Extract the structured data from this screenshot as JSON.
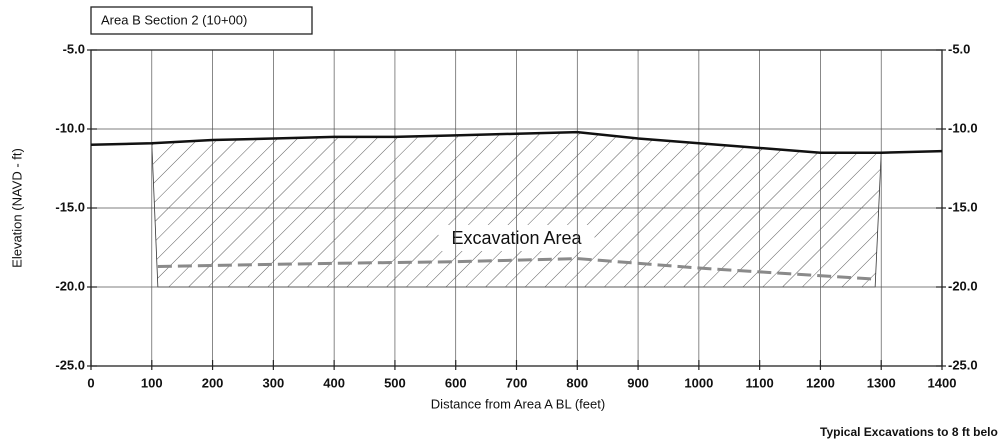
{
  "chart_data": {
    "type": "line",
    "title": "Area B Section 2 (10+00)",
    "xlabel": "Distance from Area A BL (feet)",
    "ylabel": "Elevation (NAVD - ft)",
    "footnote": "Typical Excavations to 8 ft belo",
    "xlim": [
      0,
      1400
    ],
    "xticks": [
      0,
      100,
      200,
      300,
      400,
      500,
      600,
      700,
      800,
      900,
      1000,
      1100,
      1200,
      1300,
      1400
    ],
    "ylim": [
      -25,
      -5
    ],
    "yticks": [
      {
        "value": -25,
        "label": "-25.0"
      },
      {
        "value": -20,
        "label": "-20.0"
      },
      {
        "value": -15,
        "label": "-15.0"
      },
      {
        "value": -10,
        "label": "-10.0"
      },
      {
        "value": -5,
        "label": "-5.0"
      }
    ],
    "y2lim": [
      -25,
      -5
    ],
    "y2ticks": [
      {
        "value": -25,
        "label": "-25.0"
      },
      {
        "value": -20,
        "label": "-20.0"
      },
      {
        "value": -15,
        "label": "-15.0"
      },
      {
        "value": -10,
        "label": "-10.0"
      },
      {
        "value": -5,
        "label": "-5.0"
      }
    ],
    "grid": true,
    "series": [
      {
        "color": "#111111",
        "style": "solid",
        "x": [
          0,
          100,
          200,
          300,
          400,
          500,
          600,
          700,
          800,
          900,
          1000,
          1100,
          1200,
          1300,
          1400
        ],
        "values": [
          -11.0,
          -10.9,
          -10.7,
          -10.6,
          -10.5,
          -10.5,
          -10.4,
          -10.3,
          -10.2,
          -10.6,
          -10.9,
          -11.2,
          -11.5,
          -11.5,
          -11.4
        ]
      },
      {
        "color": "#8a8a8a",
        "style": "dashed",
        "x": [
          110,
          400,
          600,
          800,
          1000,
          1290
        ],
        "values": [
          -18.7,
          -18.5,
          -18.4,
          -18.2,
          -18.8,
          -19.5
        ]
      }
    ],
    "excavation": {
      "label": "Excavation Area",
      "x_top": [
        100,
        1300
      ],
      "x_bottom": [
        110,
        1290
      ],
      "bottom": -20
    }
  }
}
